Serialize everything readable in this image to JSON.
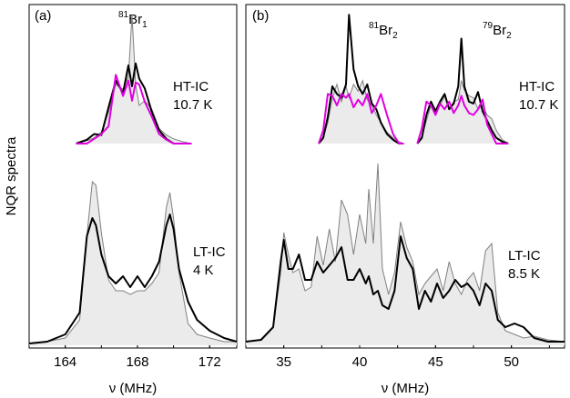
{
  "ylabel": "NQR spectra",
  "colors": {
    "exp": "#808080",
    "fill": "#ebebeb",
    "sim_black": "#000000",
    "sim_magenta": "#e000e0"
  },
  "chart_data": [
    {
      "type": "line",
      "panel": "(a)",
      "xlabel": "ν (MHz)",
      "xlim": [
        162,
        173.5
      ],
      "xticks": [
        164,
        168,
        172
      ],
      "grid": false,
      "spectra": [
        {
          "label": "⁸¹Br₁",
          "label_main": "Br",
          "label_sup": "81",
          "label_sub": "1",
          "condition": "HT-IC",
          "temperature": "10.7 K",
          "x": [
            164.6,
            165.2,
            165.6,
            166.0,
            166.4,
            166.8,
            167.2,
            167.5,
            167.7,
            167.9,
            168.1,
            168.4,
            168.8,
            169.2,
            169.6,
            170.0,
            170.5,
            171.0
          ],
          "series": [
            {
              "name": "experiment",
              "values": [
                0.0,
                0.03,
                0.06,
                0.12,
                0.33,
                0.62,
                0.57,
                0.7,
                1.35,
                0.62,
                0.4,
                0.45,
                0.36,
                0.16,
                0.09,
                0.05,
                0.02,
                0.0
              ]
            },
            {
              "name": "black",
              "values": [
                0.0,
                0.04,
                0.1,
                0.09,
                0.38,
                0.66,
                0.53,
                0.82,
                0.6,
                0.84,
                0.68,
                0.58,
                0.33,
                0.14,
                0.05,
                0.0,
                0.0,
                0.0
              ]
            },
            {
              "name": "magenta",
              "values": [
                0.0,
                0.0,
                0.05,
                0.1,
                0.18,
                0.72,
                0.5,
                0.66,
                0.45,
                0.64,
                0.62,
                0.44,
                0.28,
                0.1,
                0.04,
                0.0,
                0.0,
                0.0
              ]
            }
          ]
        },
        {
          "label": "LT-IC 4 K",
          "condition": "LT-IC",
          "temperature": "4 K",
          "x": [
            162.0,
            163.0,
            164.0,
            164.8,
            165.2,
            165.5,
            165.7,
            166.0,
            166.4,
            166.8,
            167.2,
            167.6,
            168.0,
            168.4,
            168.8,
            169.2,
            169.6,
            169.8,
            170.0,
            170.3,
            170.8,
            171.3,
            172.0,
            172.8,
            173.5
          ],
          "series": [
            {
              "name": "experiment",
              "values": [
                0.01,
                0.02,
                0.04,
                0.14,
                0.6,
                0.9,
                0.88,
                0.62,
                0.36,
                0.3,
                0.3,
                0.28,
                0.3,
                0.3,
                0.34,
                0.4,
                0.76,
                0.84,
                0.7,
                0.4,
                0.12,
                0.06,
                0.04,
                0.02,
                0.02
              ]
            },
            {
              "name": "black",
              "values": [
                0.01,
                0.02,
                0.06,
                0.18,
                0.6,
                0.7,
                0.66,
                0.5,
                0.38,
                0.34,
                0.38,
                0.32,
                0.38,
                0.32,
                0.38,
                0.46,
                0.66,
                0.72,
                0.64,
                0.42,
                0.24,
                0.14,
                0.08,
                0.04,
                0.02
              ]
            }
          ]
        }
      ]
    },
    {
      "type": "line",
      "panel": "(b)",
      "xlabel": "ν (MHz)",
      "xlim": [
        32.5,
        53.5
      ],
      "xticks": [
        35,
        40,
        45,
        50
      ],
      "grid": false,
      "spectra": [
        {
          "label": "⁸¹Br₂",
          "label_main": "Br",
          "label_sup": "81",
          "label_sub": "2",
          "condition": "",
          "temperature": "",
          "x": [
            37.3,
            37.6,
            37.9,
            38.2,
            38.5,
            38.8,
            39.1,
            39.3,
            39.6,
            39.9,
            40.2,
            40.5,
            40.8,
            41.1,
            41.4,
            41.8,
            42.2,
            42.6,
            42.9
          ],
          "series": [
            {
              "name": "experiment",
              "values": [
                0.0,
                0.06,
                0.22,
                0.48,
                0.62,
                0.44,
                0.6,
                0.48,
                0.62,
                0.55,
                0.66,
                0.46,
                0.4,
                0.3,
                0.22,
                0.12,
                0.06,
                0.02,
                0.0
              ]
            },
            {
              "name": "black",
              "values": [
                0.0,
                0.06,
                0.28,
                0.6,
                0.52,
                0.48,
                0.62,
                1.35,
                0.78,
                0.6,
                0.52,
                0.62,
                0.42,
                0.36,
                0.22,
                0.1,
                0.04,
                0.0,
                0.0
              ]
            },
            {
              "name": "magenta",
              "values": [
                0.0,
                0.14,
                0.52,
                0.5,
                0.4,
                0.52,
                0.48,
                0.52,
                0.38,
                0.46,
                0.4,
                0.52,
                0.32,
                0.4,
                0.52,
                0.3,
                0.1,
                0.0,
                0.0
              ]
            }
          ]
        },
        {
          "label": "⁷⁹Br₂",
          "label_main": "Br",
          "label_sup": "79",
          "label_sub": "2",
          "condition": "HT-IC",
          "temperature": "10.7 K",
          "x": [
            43.8,
            44.1,
            44.4,
            44.7,
            45.0,
            45.3,
            45.6,
            45.9,
            46.2,
            46.5,
            46.7,
            46.9,
            47.2,
            47.5,
            47.8,
            48.1,
            48.4,
            48.7,
            49.0,
            49.4,
            49.8
          ],
          "series": [
            {
              "name": "experiment",
              "values": [
                0.0,
                0.08,
                0.24,
                0.4,
                0.32,
                0.4,
                0.5,
                0.36,
                0.44,
                0.46,
                0.66,
                0.56,
                0.5,
                0.48,
                0.36,
                0.4,
                0.3,
                0.26,
                0.14,
                0.04,
                0.0
              ]
            },
            {
              "name": "black",
              "values": [
                0.0,
                0.06,
                0.3,
                0.44,
                0.34,
                0.44,
                0.52,
                0.36,
                0.42,
                0.6,
                1.1,
                0.6,
                0.44,
                0.42,
                0.54,
                0.34,
                0.24,
                0.14,
                0.06,
                0.02,
                0.0
              ]
            },
            {
              "name": "magenta",
              "values": [
                0.0,
                0.16,
                0.44,
                0.4,
                0.3,
                0.42,
                0.36,
                0.44,
                0.32,
                0.4,
                0.5,
                0.4,
                0.32,
                0.3,
                0.36,
                0.46,
                0.2,
                0.1,
                0.0,
                0.0,
                0.0
              ]
            }
          ]
        },
        {
          "label": "LT-IC 8.5 K",
          "condition": "LT-IC",
          "temperature": "8.5 K",
          "x": [
            32.5,
            33.5,
            34.3,
            34.8,
            35.0,
            35.3,
            35.6,
            36.0,
            36.4,
            36.8,
            37.2,
            37.6,
            38.0,
            38.4,
            38.8,
            39.2,
            39.6,
            40.0,
            40.4,
            40.6,
            40.9,
            41.2,
            41.5,
            41.9,
            42.3,
            42.7,
            43.1,
            43.5,
            43.9,
            44.3,
            44.7,
            45.1,
            45.5,
            45.9,
            46.3,
            46.7,
            47.1,
            47.5,
            47.9,
            48.3,
            48.7,
            49.1,
            49.6,
            50.2,
            50.8,
            51.5,
            52.4,
            53.5
          ],
          "series": [
            {
              "name": "experiment",
              "values": [
                0.02,
                0.03,
                0.1,
                0.4,
                0.62,
                0.5,
                0.4,
                0.42,
                0.3,
                0.32,
                0.6,
                0.44,
                0.64,
                0.46,
                0.8,
                0.72,
                0.5,
                0.72,
                0.56,
                0.86,
                0.56,
                1.0,
                0.42,
                0.28,
                0.4,
                0.68,
                0.54,
                0.46,
                0.28,
                0.34,
                0.38,
                0.42,
                0.3,
                0.46,
                0.34,
                0.28,
                0.36,
                0.4,
                0.3,
                0.52,
                0.56,
                0.18,
                0.08,
                0.06,
                0.04,
                0.05,
                0.03,
                0.02
              ]
            },
            {
              "name": "black",
              "values": [
                0.02,
                0.03,
                0.1,
                0.46,
                0.58,
                0.42,
                0.42,
                0.5,
                0.36,
                0.36,
                0.46,
                0.4,
                0.44,
                0.48,
                0.54,
                0.36,
                0.36,
                0.42,
                0.34,
                0.38,
                0.28,
                0.3,
                0.22,
                0.2,
                0.3,
                0.6,
                0.48,
                0.42,
                0.2,
                0.3,
                0.24,
                0.34,
                0.26,
                0.3,
                0.36,
                0.32,
                0.34,
                0.3,
                0.22,
                0.34,
                0.3,
                0.14,
                0.1,
                0.12,
                0.1,
                0.04,
                0.02,
                0.02
              ]
            }
          ]
        }
      ]
    }
  ]
}
